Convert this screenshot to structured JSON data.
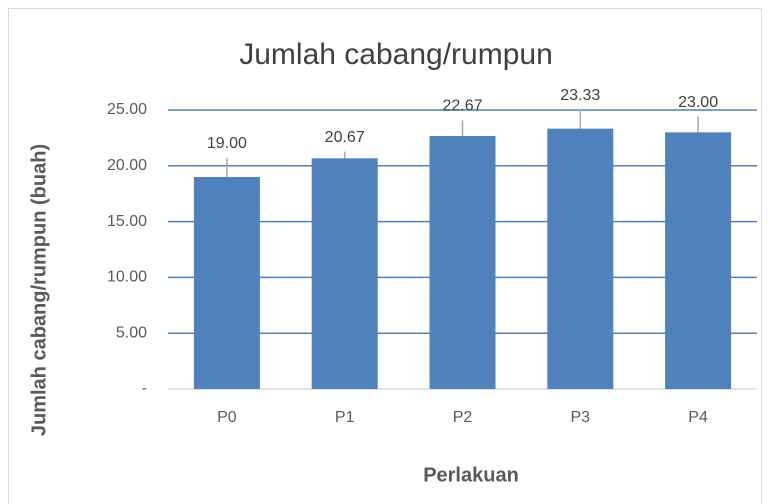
{
  "chart_data": {
    "type": "bar",
    "title": "Jumlah cabang/rumpun",
    "x_label": "Perlakuan",
    "y_label": "Jumlah cabang/rumpun (buah)",
    "categories": [
      "P0",
      "P1",
      "P2",
      "P3",
      "P4"
    ],
    "values": [
      19.0,
      20.67,
      22.67,
      23.33,
      23.0
    ],
    "value_labels": [
      "19.00",
      "20.67",
      "22.67",
      "23.33",
      "23.00"
    ],
    "errors": [
      1.7,
      0.6,
      1.4,
      1.7,
      1.4
    ],
    "color": "#4f81bd",
    "ylim": [
      0,
      25
    ],
    "yticks": [
      {
        "value": 0,
        "label": "-"
      },
      {
        "value": 5,
        "label": "5.00"
      },
      {
        "value": 10,
        "label": "10.00"
      },
      {
        "value": 15,
        "label": "15.00"
      },
      {
        "value": 20,
        "label": "20.00"
      },
      {
        "value": 25,
        "label": "25.00"
      }
    ],
    "grid": true
  }
}
